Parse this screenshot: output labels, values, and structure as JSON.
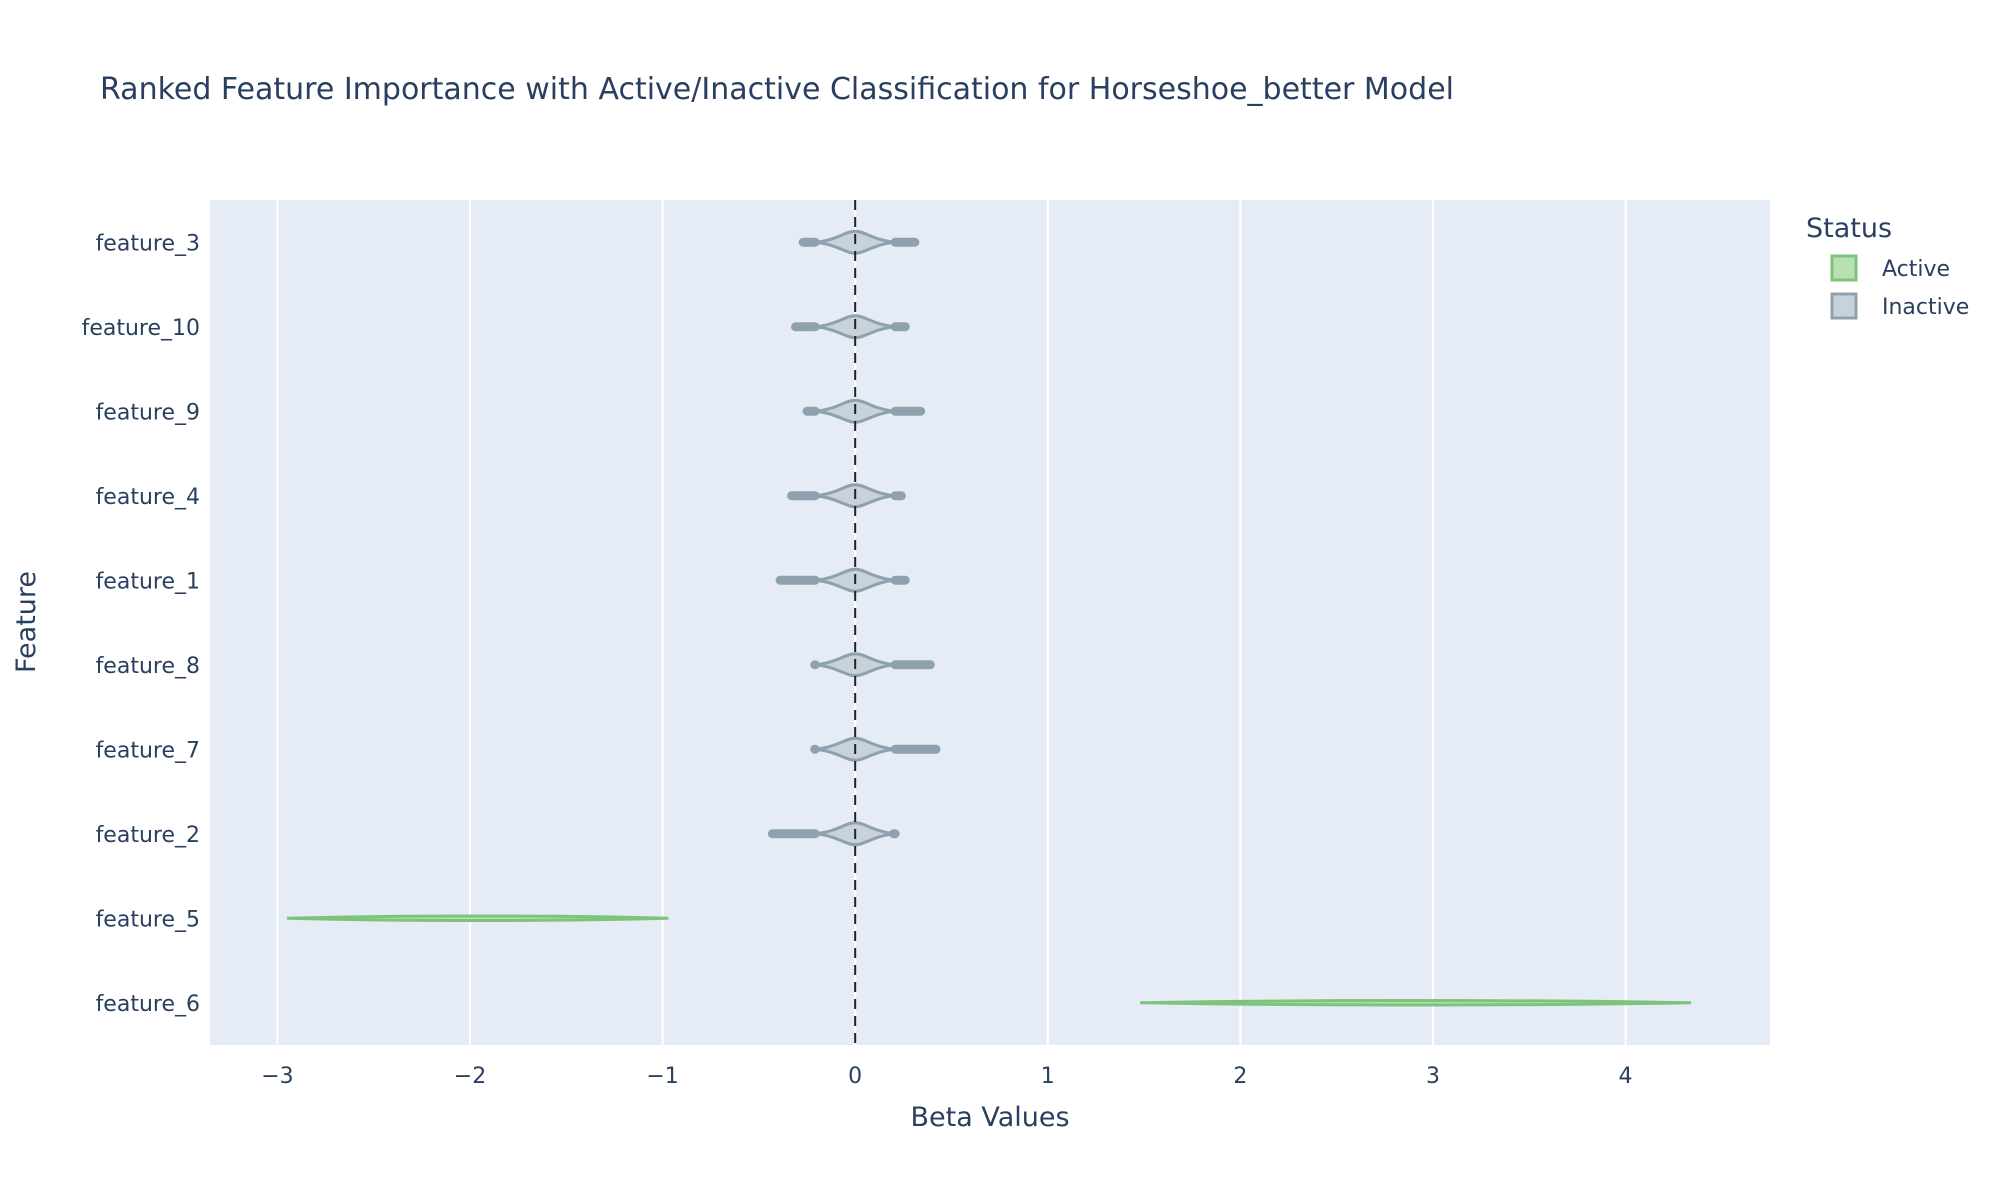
{
  "chart_data": {
    "type": "violin",
    "title": "Ranked Feature Importance with Active/Inactive Classification for Horseshoe_better Model",
    "xlabel": "Beta Values",
    "ylabel": "Feature",
    "xlim": [
      -3.35,
      4.75
    ],
    "x_ticks": [
      {
        "value": -3,
        "label": "−3"
      },
      {
        "value": -2,
        "label": "−2"
      },
      {
        "value": -1,
        "label": "−1"
      },
      {
        "value": 0,
        "label": "0"
      },
      {
        "value": 1,
        "label": "1"
      },
      {
        "value": 2,
        "label": "2"
      },
      {
        "value": 3,
        "label": "3"
      },
      {
        "value": 4,
        "label": "4"
      }
    ],
    "reference_line": {
      "x": 0,
      "style": "dashed"
    },
    "grid": true,
    "legend": {
      "title": "Status",
      "placement": "top-right",
      "entries": [
        {
          "label": "Active",
          "fill": "#b7e0b3",
          "stroke": "#7dc47a"
        },
        {
          "label": "Inactive",
          "fill": "#c8d2da",
          "stroke": "#8fa1ae"
        }
      ]
    },
    "features": [
      {
        "name": "feature_3",
        "status": "Inactive",
        "min": -0.27,
        "max": 0.31,
        "median": 0.0
      },
      {
        "name": "feature_10",
        "status": "Inactive",
        "min": -0.31,
        "max": 0.26,
        "median": 0.0
      },
      {
        "name": "feature_9",
        "status": "Inactive",
        "min": -0.25,
        "max": 0.34,
        "median": 0.0
      },
      {
        "name": "feature_4",
        "status": "Inactive",
        "min": -0.33,
        "max": 0.24,
        "median": 0.0
      },
      {
        "name": "feature_1",
        "status": "Inactive",
        "min": -0.39,
        "max": 0.26,
        "median": 0.0
      },
      {
        "name": "feature_8",
        "status": "Inactive",
        "min": -0.21,
        "max": 0.39,
        "median": 0.0
      },
      {
        "name": "feature_7",
        "status": "Inactive",
        "min": -0.21,
        "max": 0.42,
        "median": 0.0
      },
      {
        "name": "feature_2",
        "status": "Inactive",
        "min": -0.43,
        "max": 0.2,
        "median": 0.0
      },
      {
        "name": "feature_5",
        "status": "Active",
        "min": -2.95,
        "max": -0.97,
        "median": -1.9
      },
      {
        "name": "feature_6",
        "status": "Active",
        "min": 1.48,
        "max": 4.34,
        "median": 2.9
      }
    ]
  }
}
